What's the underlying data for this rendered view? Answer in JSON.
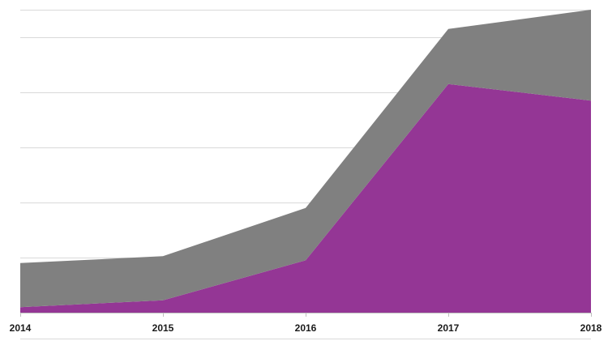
{
  "chart_data": {
    "type": "area",
    "stacked": true,
    "title": "",
    "xlabel": "",
    "ylabel": "",
    "categories": [
      "2014",
      "2015",
      "2016",
      "2017",
      "2018"
    ],
    "ylim": [
      0,
      110
    ],
    "y_gridlines": [
      0,
      20,
      40,
      60,
      80,
      100,
      110
    ],
    "y_tick_labels_visible": false,
    "grid": true,
    "legend": "none",
    "series": [
      {
        "color": "#943695",
        "values": [
          2,
          4.5,
          19,
          83,
          77
        ]
      },
      {
        "color": "#808080",
        "values": [
          16,
          16,
          19,
          20,
          33
        ]
      }
    ]
  }
}
